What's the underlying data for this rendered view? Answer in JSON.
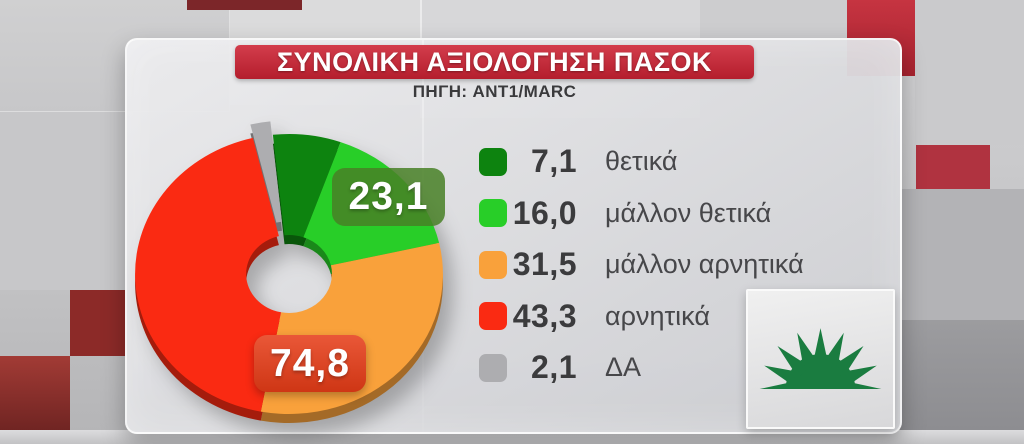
{
  "chart_data": {
    "type": "pie",
    "donut": true,
    "title": "ΣΥΝΟΛΙΚΗ ΑΞΙΟΛΟΓΗΣΗ ΠΑΣΟΚ",
    "source": "ΠΗΓΗ: ANT1/MARC",
    "units": "percent",
    "direction": "clockwise",
    "rotation_deg": -6,
    "legend_position": "right",
    "slices": [
      {
        "label": "θετικά",
        "value": 7.1,
        "display": "7,1",
        "color": "#0d830f"
      },
      {
        "label": "μάλλον θετικά",
        "value": 16.0,
        "display": "16,0",
        "color": "#28ce28"
      },
      {
        "label": "μάλλον αρνητικά",
        "value": 31.5,
        "display": "31,5",
        "color": "#f9a13b"
      },
      {
        "label": "αρνητικά",
        "value": 43.3,
        "display": "43,3",
        "color": "#fa2a12"
      },
      {
        "label": "ΔΑ",
        "value": 2.1,
        "display": "2,1",
        "color": "#adadb0",
        "exploded": true
      }
    ],
    "callouts": [
      {
        "text": "23,1",
        "color": "rgba(72,128,38,0.85)"
      },
      {
        "text": "74,8",
        "color": "#e63c17"
      }
    ]
  },
  "colors": {
    "banner_background": "#cd2233",
    "banner_text": "#ffffff",
    "card_background": "#dcdcdf",
    "legend_value_text": "#3b3b3d",
    "legend_label_text": "#47474a"
  },
  "logo": {
    "symbol": "pasok-sun",
    "color": "#1a7c40"
  }
}
